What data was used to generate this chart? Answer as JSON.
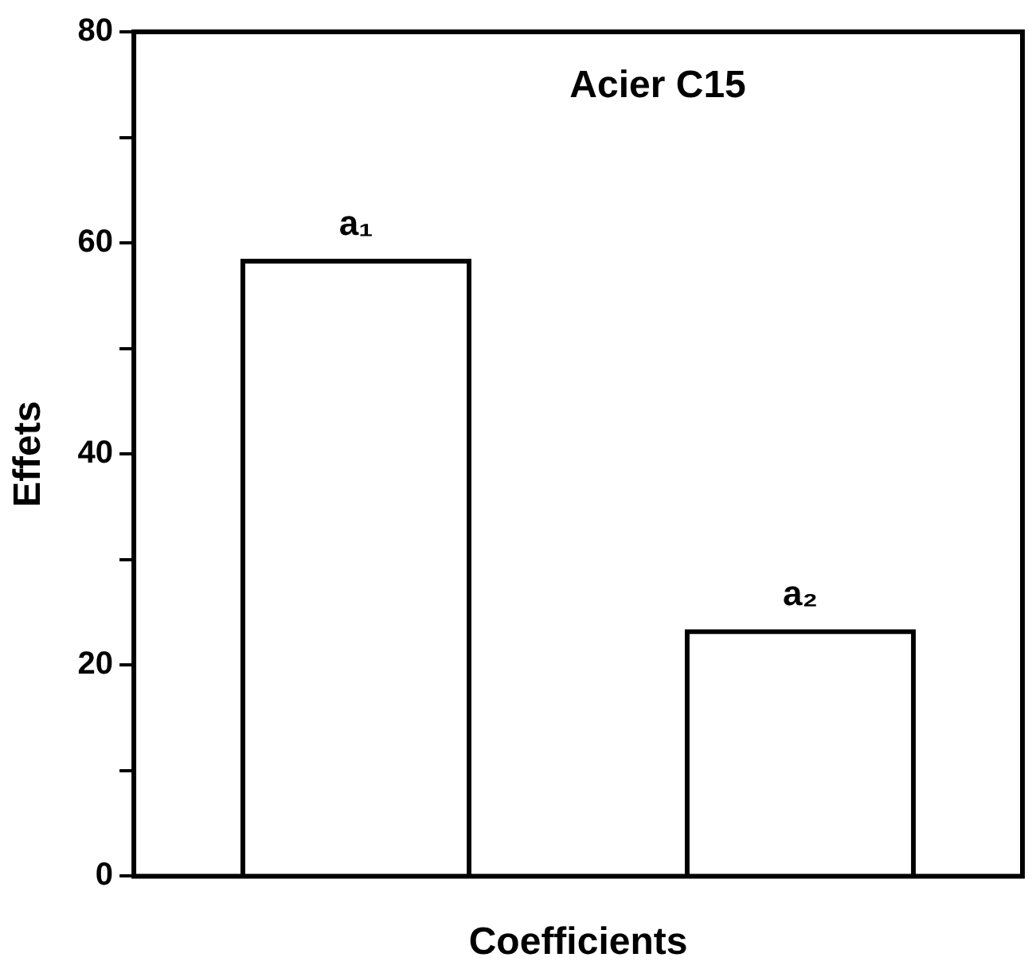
{
  "chart_data": {
    "type": "bar",
    "title": "Acier C15",
    "xlabel": "Coefficients",
    "ylabel": "Effets",
    "categories": [
      "a₁",
      "a₂"
    ],
    "values": [
      58.5,
      23.4
    ],
    "color": "#000000",
    "ylim": [
      0,
      80
    ],
    "yticks": [
      0,
      {
        "value": 10,
        "label": null
      },
      20,
      {
        "value": 30,
        "label": null
      },
      40,
      {
        "value": 50,
        "label": null
      },
      60,
      {
        "value": 70,
        "label": null
      },
      80
    ],
    "grid": false,
    "legend": false
  }
}
